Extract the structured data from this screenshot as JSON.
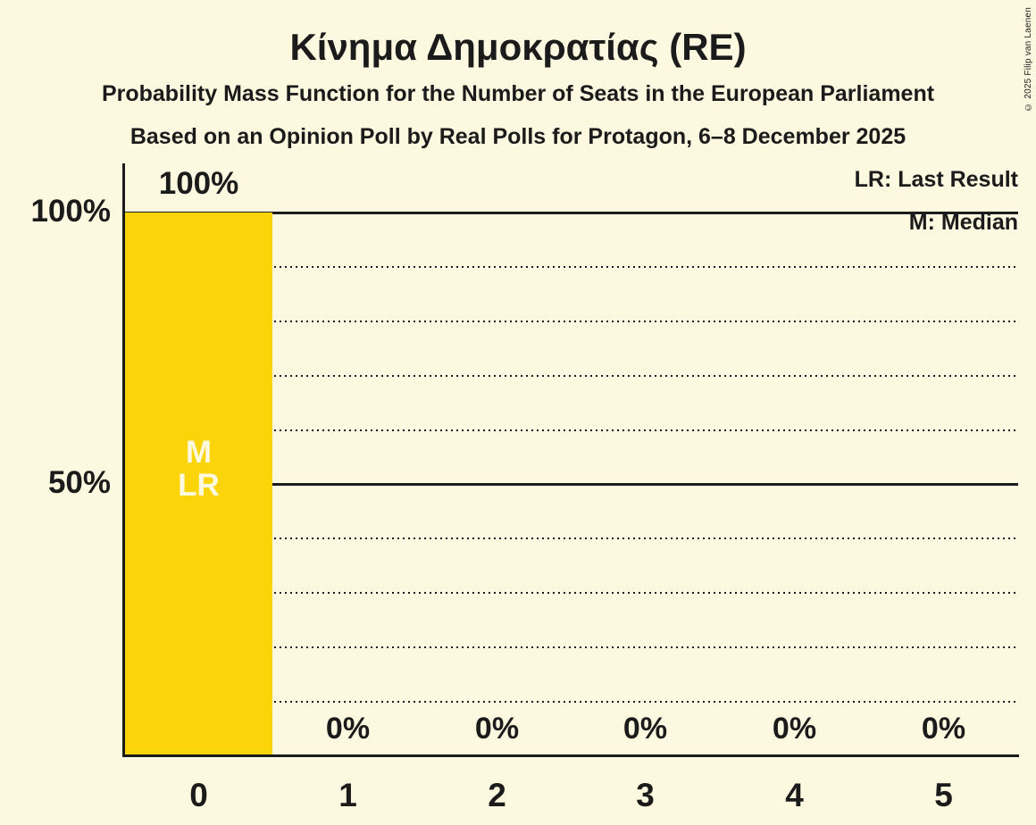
{
  "header": {
    "title": "Κίνημα Δημοκρατίας (RE)",
    "subtitle": "Probability Mass Function for the Number of Seats in the European Parliament",
    "poll_details": "Based on an Opinion Poll by Real Polls for Protagon, 6–8 December 2025"
  },
  "copyright": "© 2025 Filip van Laenen",
  "legend": {
    "last_result": "LR: Last Result",
    "median": "M: Median"
  },
  "y_axis": {
    "labels": [
      "100%",
      "50%"
    ]
  },
  "chart_data": {
    "type": "bar",
    "title": "Κίνημα Δημοκρατίας (RE)",
    "categories": [
      "0",
      "1",
      "2",
      "3",
      "4",
      "5"
    ],
    "values": [
      100,
      0,
      0,
      0,
      0,
      0
    ],
    "value_labels": [
      "100%",
      "0%",
      "0%",
      "0%",
      "0%",
      "0%"
    ],
    "bar_inner_labels": {
      "median": "M",
      "last_result": "LR"
    },
    "median_seat": "0",
    "last_result_seat": "0",
    "ylim": [
      0,
      100
    ],
    "y_solid_gridlines_percent": [
      50,
      100
    ],
    "y_dotted_gridlines_percent": [
      10,
      20,
      30,
      40,
      60,
      70,
      80,
      90
    ],
    "legend_position": "top-right",
    "colors": {
      "bar": "#FCD40A",
      "background": "#FDF8E0",
      "text": "#1B1B1B"
    }
  }
}
